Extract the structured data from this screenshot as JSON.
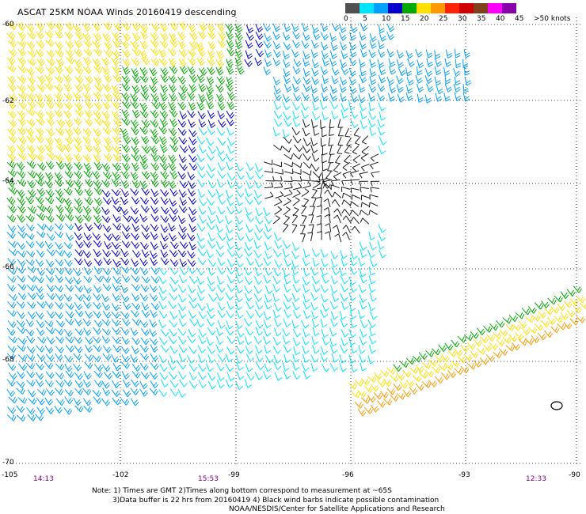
{
  "header": {
    "title": "ASCAT 25KM NOAA Winds 20160419 descending"
  },
  "legend": {
    "tick_labels": [
      "0",
      "5",
      "10",
      "15",
      "20",
      "25",
      "30",
      "35",
      "40",
      "45",
      ">50 knots"
    ],
    "colors": [
      "#505050",
      "#00e5ff",
      "#00a0ff",
      "#0000cc",
      "#00aa00",
      "#ffe000",
      "#ff9900",
      "#ff2200",
      "#d00000",
      "#804020",
      "#ff00ff",
      "#8800aa"
    ]
  },
  "axes": {
    "lat_labels": [
      "-60",
      "-62",
      "-64",
      "-66",
      "-68",
      "-70"
    ],
    "lon_labels": [
      "-105",
      "-102",
      "-99",
      "-96",
      "-93",
      "-90"
    ],
    "time_labels": [
      "14:13",
      "15:53",
      "12:33"
    ]
  },
  "note": {
    "line1": "Note: 1) Times are GMT 2)Times along bottom correspond to measurement at ~65S",
    "line2": "3)Data buffer is 22 hrs from 20160419 4) Black wind barbs indicate possible contamination",
    "line3": "NOAA/NESDIS/Center for Satellite Applications and Research"
  },
  "map_data": {
    "type": "wind-barbs",
    "lon_range": [
      -105,
      -90
    ],
    "lat_range": [
      -70,
      -60
    ],
    "wind_color_key": {
      "calm_contaminated": "#1a1a1a",
      "light": "#00e5ff",
      "light_mod": "#00a0ff",
      "moderate": "#0000cc",
      "fresh": "#00aa00",
      "strong": "#ffe000",
      "gale": "#ff9900"
    }
  }
}
